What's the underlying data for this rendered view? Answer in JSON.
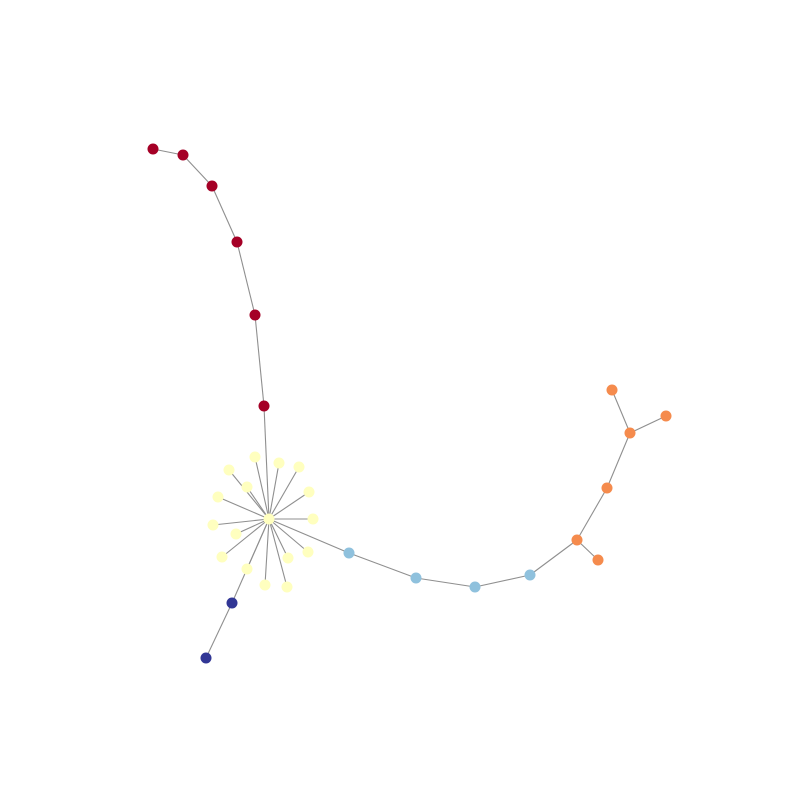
{
  "colors": {
    "edge": "#8f8f8f",
    "background": "#ffffff"
  },
  "groups": [
    {
      "id": "red-chain",
      "color": "#a50026"
    },
    {
      "id": "hub-cluster",
      "color": "#ffffbf"
    },
    {
      "id": "blue-chain",
      "color": "#8fc1dd"
    },
    {
      "id": "orange-branch",
      "color": "#f58b4d"
    },
    {
      "id": "navy-chain",
      "color": "#313695"
    }
  ],
  "node_count": 35,
  "edge_count": 34
}
